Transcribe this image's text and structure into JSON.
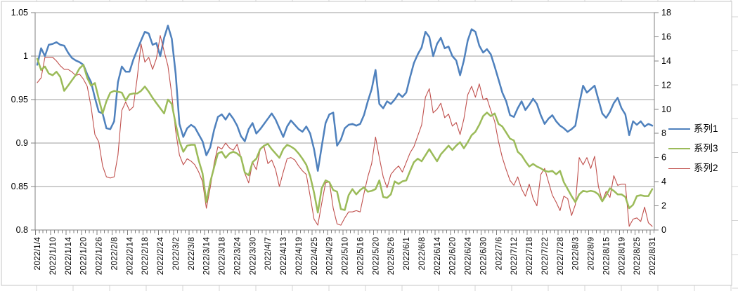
{
  "chart_data": {
    "type": "line",
    "title": "",
    "x_labels": [
      "2022/1/4",
      "2022/1/10",
      "2022/1/14",
      "2022/1/20",
      "2022/1/26",
      "2022/2/8",
      "2022/2/14",
      "2022/2/18",
      "2022/2/24",
      "2022/3/2",
      "2022/3/8",
      "2022/3/14",
      "2022/3/18",
      "2022/3/24",
      "2022/3/30",
      "2022/4/7",
      "2022/4/13",
      "2022/4/19",
      "2022/4/25",
      "2022/4/29",
      "2022/5/10",
      "2022/5/16",
      "2022/5/20",
      "2022/5/26",
      "2022/6/1",
      "2022/6/8",
      "2022/6/14",
      "2022/6/20",
      "2022/6/24",
      "2022/6/30",
      "2022/7/6",
      "2022/7/12",
      "2022/7/18",
      "2022/7/22",
      "2022/7/28",
      "2022/8/3",
      "2022/8/9",
      "2022/8/15",
      "2022/8/19",
      "2022/8/25",
      "2022/8/31"
    ],
    "label_every": 4,
    "points_count": 161,
    "left_axis": {
      "min": 0.8,
      "max": 1.05,
      "step": 0.05,
      "tick_labels": [
        "1.05",
        "1",
        "0.95",
        "0.9",
        "0.85",
        "0.8"
      ]
    },
    "right_axis": {
      "min": 0,
      "max": 18,
      "step": 2,
      "tick_labels": [
        "18",
        "16",
        "14",
        "12",
        "10",
        "8",
        "6",
        "4",
        "2",
        "0"
      ]
    },
    "grid": "horizontal-left-axis-only",
    "legend_position": "right",
    "series": [
      {
        "name": "系列1",
        "axis": "left",
        "color": "#4F81BD",
        "width": 2.5,
        "values": [
          0.99,
          1.009,
          1.0,
          1.013,
          1.014,
          1.016,
          1.013,
          1.012,
          1.004,
          0.998,
          0.995,
          0.993,
          0.99,
          0.979,
          0.97,
          0.952,
          0.936,
          0.934,
          0.917,
          0.916,
          0.925,
          0.97,
          0.988,
          0.982,
          0.982,
          0.996,
          1.007,
          1.018,
          1.028,
          1.026,
          1.013,
          1.015,
          1.0,
          1.021,
          1.035,
          1.02,
          0.98,
          0.922,
          0.907,
          0.917,
          0.921,
          0.918,
          0.91,
          0.902,
          0.886,
          0.895,
          0.915,
          0.93,
          0.933,
          0.927,
          0.934,
          0.928,
          0.92,
          0.908,
          0.902,
          0.916,
          0.923,
          0.911,
          0.916,
          0.922,
          0.928,
          0.934,
          0.927,
          0.917,
          0.907,
          0.919,
          0.926,
          0.921,
          0.916,
          0.913,
          0.919,
          0.911,
          0.893,
          0.868,
          0.896,
          0.923,
          0.933,
          0.935,
          0.897,
          0.904,
          0.917,
          0.921,
          0.922,
          0.92,
          0.922,
          0.932,
          0.948,
          0.962,
          0.984,
          0.945,
          0.94,
          0.948,
          0.945,
          0.95,
          0.957,
          0.953,
          0.958,
          0.976,
          0.992,
          1.002,
          1.01,
          1.028,
          1.022,
          1.0,
          1.014,
          1.021,
          1.009,
          1.011,
          1.0,
          0.995,
          0.978,
          0.995,
          1.018,
          1.031,
          1.028,
          1.012,
          1.004,
          1.008,
          1.002,
          0.988,
          0.973,
          0.958,
          0.948,
          0.932,
          0.93,
          0.94,
          0.948,
          0.938,
          0.944,
          0.951,
          0.945,
          0.932,
          0.922,
          0.928,
          0.932,
          0.925,
          0.92,
          0.917,
          0.913,
          0.916,
          0.92,
          0.945,
          0.966,
          0.958,
          0.962,
          0.966,
          0.95,
          0.934,
          0.929,
          0.936,
          0.946,
          0.952,
          0.94,
          0.933,
          0.909,
          0.925,
          0.921,
          0.925,
          0.919,
          0.922,
          0.92
        ]
      },
      {
        "name": "系列3",
        "axis": "left",
        "color": "#9BBB59",
        "width": 2.5,
        "values": [
          0.997,
          0.984,
          0.988,
          0.98,
          0.978,
          0.982,
          0.976,
          0.96,
          0.966,
          0.972,
          0.978,
          0.986,
          0.99,
          0.975,
          0.966,
          0.969,
          0.951,
          0.934,
          0.948,
          0.958,
          0.96,
          0.959,
          0.958,
          0.949,
          0.956,
          0.957,
          0.957,
          0.96,
          0.965,
          0.959,
          0.952,
          0.946,
          0.94,
          0.934,
          0.95,
          0.945,
          0.922,
          0.902,
          0.89,
          0.897,
          0.898,
          0.898,
          0.88,
          0.865,
          0.832,
          0.855,
          0.872,
          0.888,
          0.89,
          0.883,
          0.888,
          0.89,
          0.888,
          0.884,
          0.866,
          0.863,
          0.878,
          0.882,
          0.893,
          0.897,
          0.899,
          0.893,
          0.888,
          0.883,
          0.893,
          0.898,
          0.896,
          0.893,
          0.888,
          0.882,
          0.875,
          0.862,
          0.843,
          0.82,
          0.848,
          0.857,
          0.855,
          0.846,
          0.844,
          0.824,
          0.823,
          0.84,
          0.847,
          0.841,
          0.846,
          0.849,
          0.844,
          0.845,
          0.847,
          0.857,
          0.838,
          0.837,
          0.841,
          0.856,
          0.853,
          0.856,
          0.857,
          0.868,
          0.878,
          0.882,
          0.879,
          0.886,
          0.893,
          0.886,
          0.879,
          0.887,
          0.892,
          0.897,
          0.892,
          0.897,
          0.901,
          0.894,
          0.901,
          0.909,
          0.913,
          0.921,
          0.931,
          0.935,
          0.931,
          0.934,
          0.922,
          0.919,
          0.912,
          0.905,
          0.903,
          0.89,
          0.886,
          0.879,
          0.873,
          0.876,
          0.873,
          0.871,
          0.868,
          0.867,
          0.868,
          0.864,
          0.868,
          0.855,
          0.847,
          0.839,
          0.832,
          0.841,
          0.845,
          0.844,
          0.845,
          0.844,
          0.841,
          0.833,
          0.84,
          0.848,
          0.845,
          0.841,
          0.841,
          0.838,
          0.825,
          0.829,
          0.839,
          0.84,
          0.839,
          0.839,
          0.847
        ]
      },
      {
        "name": "系列2",
        "axis": "right",
        "color": "#C0504D",
        "width": 1.1,
        "values": [
          12.2,
          12.6,
          14.3,
          14.3,
          14.3,
          14.0,
          13.6,
          13.3,
          13.3,
          13.1,
          12.8,
          12.9,
          12.5,
          11.9,
          10.2,
          7.9,
          7.3,
          5.3,
          4.4,
          4.3,
          4.4,
          6.2,
          9.9,
          10.6,
          9.9,
          10.2,
          12.6,
          15.4,
          13.9,
          14.3,
          13.3,
          14.2,
          16.1,
          14.8,
          13.6,
          11.2,
          8.2,
          6.2,
          5.4,
          5.9,
          5.7,
          5.4,
          4.8,
          4.0,
          1.8,
          3.5,
          5.5,
          6.9,
          6.7,
          7.2,
          6.8,
          6.6,
          7.1,
          6.0,
          4.7,
          3.9,
          5.6,
          5.0,
          6.7,
          6.9,
          5.5,
          5.8,
          5.0,
          3.6,
          4.8,
          5.9,
          6.0,
          5.8,
          5.3,
          4.9,
          4.6,
          2.8,
          0.9,
          0.4,
          2.2,
          3.9,
          4.0,
          1.8,
          0.5,
          0.4,
          1.0,
          1.5,
          1.5,
          1.6,
          1.5,
          3.0,
          4.4,
          5.5,
          7.7,
          6.0,
          4.4,
          3.5,
          4.6,
          5.0,
          5.3,
          4.8,
          5.6,
          6.4,
          6.9,
          7.8,
          8.7,
          11.0,
          11.7,
          9.7,
          10.0,
          10.5,
          9.3,
          9.6,
          8.6,
          8.9,
          7.9,
          9.2,
          11.2,
          11.9,
          11.0,
          12.1,
          10.8,
          10.9,
          9.9,
          9.0,
          7.3,
          6.0,
          5.0,
          4.1,
          3.7,
          4.4,
          3.4,
          2.8,
          3.8,
          2.6,
          2.0,
          4.6,
          5.1,
          4.0,
          2.9,
          2.3,
          1.6,
          2.8,
          2.6,
          1.2,
          2.1,
          6.0,
          5.4,
          6.0,
          5.1,
          6.1,
          3.6,
          2.4,
          3.2,
          2.7,
          4.5,
          3.7,
          3.8,
          3.8,
          0.3,
          0.9,
          1.0,
          0.7,
          1.9,
          0.6,
          0.3
        ]
      }
    ],
    "legend_entries": [
      {
        "series_index": 0,
        "label": "系列1"
      },
      {
        "series_index": 1,
        "label": "系列3"
      },
      {
        "series_index": 2,
        "label": "系列2"
      }
    ],
    "draw_order": [
      0,
      2,
      1
    ]
  },
  "colors": {
    "series1_blue": "#4F81BD",
    "series3_green": "#9BBB59",
    "series2_red": "#C0504D",
    "gridline": "#9c9c9c",
    "axis_line": "#808080",
    "chart_border": "#c6c6c6",
    "worksheet_gridline": "#d4d4d4",
    "tick_text": "#000000"
  }
}
